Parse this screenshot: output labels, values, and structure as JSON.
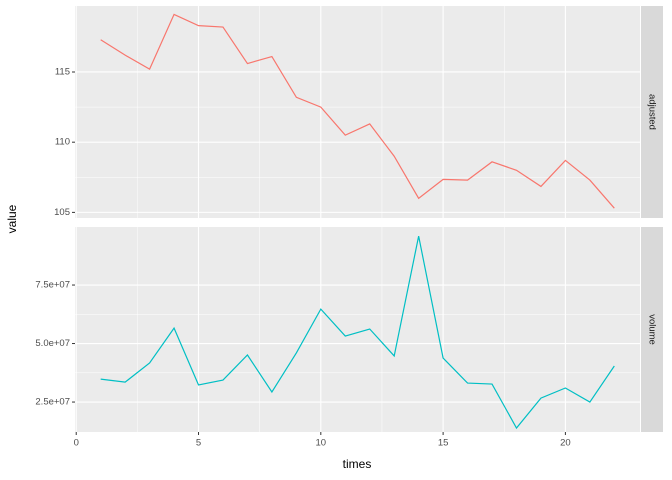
{
  "chart_data": {
    "type": "line",
    "xlabel": "times",
    "ylabel": "value",
    "x": [
      1,
      2,
      3,
      4,
      5,
      6,
      7,
      8,
      9,
      10,
      11,
      12,
      13,
      14,
      15,
      16,
      17,
      18,
      19,
      20,
      21,
      22
    ],
    "xlim": [
      -0.05,
      23.05
    ],
    "xticks": [
      0,
      5,
      10,
      15,
      20
    ],
    "grid": true,
    "panels": [
      {
        "strip": "adjusted",
        "color": "#F8766D",
        "ylim": [
          104.6,
          119.7
        ],
        "yticks": [
          105,
          110,
          115
        ],
        "values": [
          117.3,
          116.2,
          115.2,
          119.1,
          118.3,
          118.2,
          115.6,
          116.1,
          113.2,
          112.5,
          110.5,
          111.3,
          109.0,
          106.0,
          107.35,
          107.3,
          108.6,
          108.0,
          106.85,
          108.7,
          107.3,
          105.3
        ]
      },
      {
        "strip": "volume",
        "color": "#00BFC4",
        "ylim": [
          12200000,
          99800000
        ],
        "yticks": [
          {
            "value": 25000000,
            "label": "2.5e+07"
          },
          {
            "value": 50000000,
            "label": "5.0e+07"
          },
          {
            "value": 75000000,
            "label": "7.5e+07"
          }
        ],
        "values": [
          34800000,
          33500000,
          41700000,
          56600000,
          32300000,
          34400000,
          45100000,
          29300000,
          46000000,
          64700000,
          53200000,
          56200000,
          44700000,
          95900000,
          43800000,
          33100000,
          32700000,
          13900000,
          26700000,
          31000000,
          25000000,
          40400000
        ]
      }
    ]
  }
}
